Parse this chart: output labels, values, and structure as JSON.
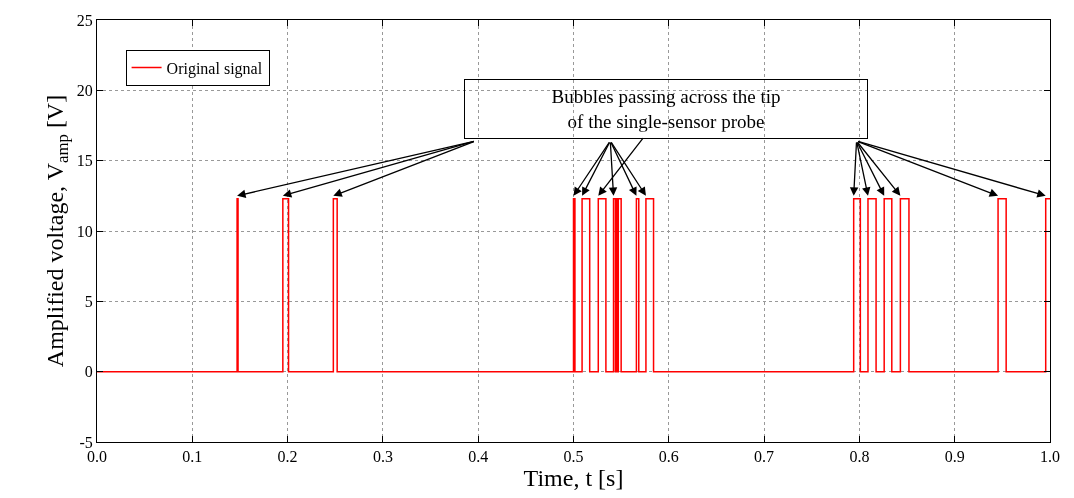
{
  "chart_data": {
    "type": "line",
    "xlabel": "Time, t [s]",
    "ylabel": "Amplified voltage, V$_{amp}$ [V]",
    "xlim": [
      0,
      1
    ],
    "ylim": [
      -5,
      25
    ],
    "xticks": [
      {
        "value": 0,
        "label": "0.0"
      },
      0.1,
      0.2,
      0.3,
      0.4,
      0.5,
      0.6,
      0.7,
      0.8,
      0.9,
      {
        "value": 1,
        "label": "1.0"
      }
    ],
    "yticks": [
      -5,
      0,
      5,
      10,
      15,
      20,
      25
    ],
    "grid": true,
    "legend": "top left",
    "line_style": "solid",
    "marker": "none",
    "annotations": [
      {
        "text": "Bubbles passing across the tip\nof the single-sensor probe",
        "x": 0.526,
        "y": 12.3
      }
    ],
    "series": [
      {
        "name": "Original signal",
        "color": "#ff0000",
        "x": [
          0,
          0.147,
          0.147,
          0.148,
          0.148,
          0.195,
          0.195,
          0.201,
          0.201,
          0.248,
          0.248,
          0.252,
          0.252,
          0.5,
          0.5,
          0.5015,
          0.5015,
          0.509,
          0.509,
          0.517,
          0.517,
          0.526,
          0.526,
          0.534,
          0.534,
          0.542,
          0.542,
          0.544,
          0.544,
          0.545,
          0.545,
          0.546,
          0.546,
          0.547,
          0.547,
          0.55,
          0.55,
          0.566,
          0.566,
          0.5685,
          0.5685,
          0.576,
          0.576,
          0.584,
          0.584,
          0.794,
          0.794,
          0.801,
          0.801,
          0.809,
          0.809,
          0.8175,
          0.8175,
          0.826,
          0.826,
          0.834,
          0.834,
          0.843,
          0.843,
          0.852,
          0.852,
          0.9455,
          0.9455,
          0.954,
          0.954,
          0.9955,
          0.9955,
          1
        ],
        "values": [
          0,
          0,
          12.3,
          12.3,
          0,
          0,
          12.3,
          12.3,
          0,
          0,
          12.3,
          12.3,
          0,
          0,
          12.3,
          12.3,
          0,
          0,
          12.3,
          12.3,
          0,
          0,
          12.3,
          12.3,
          0,
          0,
          12.3,
          12.3,
          0,
          0,
          12.3,
          12.3,
          0,
          0,
          12.3,
          12.3,
          0,
          0,
          12.3,
          12.3,
          0,
          0,
          12.3,
          12.3,
          0,
          0,
          12.3,
          12.3,
          0,
          0,
          12.3,
          12.3,
          0,
          0,
          12.3,
          12.3,
          0,
          0,
          12.3,
          12.3,
          0,
          0,
          12.3,
          12.3,
          0,
          0,
          12.3,
          12.3
        ]
      }
    ]
  }
}
